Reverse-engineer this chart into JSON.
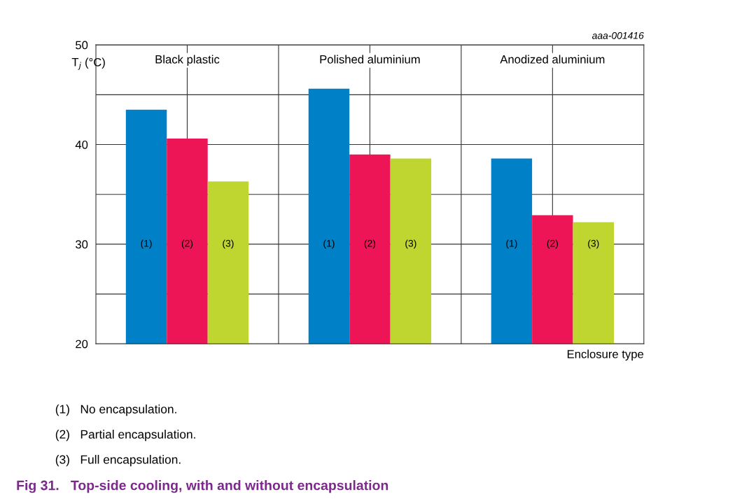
{
  "chart_data": {
    "type": "bar",
    "title": "Fig 31.   Top-side cooling, with and without encapsulation",
    "categories": [
      "Black plastic",
      "Polished aluminium",
      "Anodized aluminium"
    ],
    "series": [
      {
        "name": "(1)",
        "color": "#0080c6",
        "values": [
          43.5,
          45.6,
          38.6
        ]
      },
      {
        "name": "(2)",
        "color": "#ee1556",
        "values": [
          40.6,
          39.0,
          32.9
        ]
      },
      {
        "name": "(3)",
        "color": "#bfd630",
        "values": [
          36.3,
          38.6,
          32.2
        ]
      }
    ],
    "xlabel": "Enclosure type",
    "ylabel": "T$_{j}$ (°C)",
    "ylim": [
      20,
      50
    ],
    "yticks": [
      20,
      {
        "value": 25,
        "label": null
      },
      30,
      {
        "value": 35,
        "label": null
      },
      40,
      {
        "value": 45,
        "label": null
      },
      50
    ],
    "grid": true,
    "legend": false,
    "annotations": [
      "aaa-001416",
      "(1)   No encapsulation.",
      "(2)   Partial encapsulation.",
      "(3)   Full encapsulation."
    ]
  }
}
